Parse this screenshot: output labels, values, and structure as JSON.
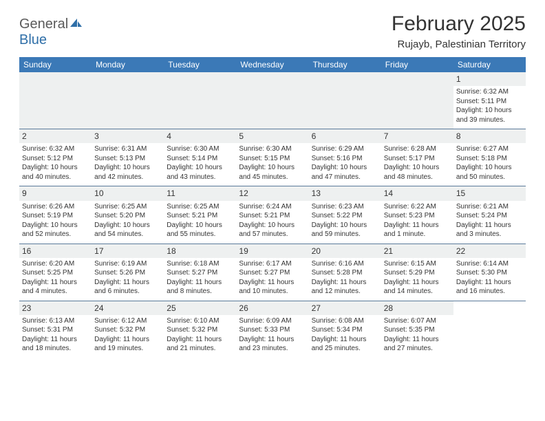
{
  "brand": {
    "text1": "General",
    "text2": "Blue"
  },
  "title": "February 2025",
  "location": "Rujayb, Palestinian Territory",
  "colors": {
    "header_bar": "#3b79b7",
    "band": "#eef0f0",
    "rule": "#5a7a9a",
    "text": "#333333",
    "logo_gray": "#5a5a5a",
    "logo_blue": "#2f6fa8"
  },
  "weekdays": [
    "Sunday",
    "Monday",
    "Tuesday",
    "Wednesday",
    "Thursday",
    "Friday",
    "Saturday"
  ],
  "weeks": [
    [
      {
        "blank": true
      },
      {
        "blank": true
      },
      {
        "blank": true
      },
      {
        "blank": true
      },
      {
        "blank": true
      },
      {
        "blank": true
      },
      {
        "day": "1",
        "sunrise": "Sunrise: 6:32 AM",
        "sunset": "Sunset: 5:11 PM",
        "daylight": "Daylight: 10 hours and 39 minutes."
      }
    ],
    [
      {
        "day": "2",
        "sunrise": "Sunrise: 6:32 AM",
        "sunset": "Sunset: 5:12 PM",
        "daylight": "Daylight: 10 hours and 40 minutes."
      },
      {
        "day": "3",
        "sunrise": "Sunrise: 6:31 AM",
        "sunset": "Sunset: 5:13 PM",
        "daylight": "Daylight: 10 hours and 42 minutes."
      },
      {
        "day": "4",
        "sunrise": "Sunrise: 6:30 AM",
        "sunset": "Sunset: 5:14 PM",
        "daylight": "Daylight: 10 hours and 43 minutes."
      },
      {
        "day": "5",
        "sunrise": "Sunrise: 6:30 AM",
        "sunset": "Sunset: 5:15 PM",
        "daylight": "Daylight: 10 hours and 45 minutes."
      },
      {
        "day": "6",
        "sunrise": "Sunrise: 6:29 AM",
        "sunset": "Sunset: 5:16 PM",
        "daylight": "Daylight: 10 hours and 47 minutes."
      },
      {
        "day": "7",
        "sunrise": "Sunrise: 6:28 AM",
        "sunset": "Sunset: 5:17 PM",
        "daylight": "Daylight: 10 hours and 48 minutes."
      },
      {
        "day": "8",
        "sunrise": "Sunrise: 6:27 AM",
        "sunset": "Sunset: 5:18 PM",
        "daylight": "Daylight: 10 hours and 50 minutes."
      }
    ],
    [
      {
        "day": "9",
        "sunrise": "Sunrise: 6:26 AM",
        "sunset": "Sunset: 5:19 PM",
        "daylight": "Daylight: 10 hours and 52 minutes."
      },
      {
        "day": "10",
        "sunrise": "Sunrise: 6:25 AM",
        "sunset": "Sunset: 5:20 PM",
        "daylight": "Daylight: 10 hours and 54 minutes."
      },
      {
        "day": "11",
        "sunrise": "Sunrise: 6:25 AM",
        "sunset": "Sunset: 5:21 PM",
        "daylight": "Daylight: 10 hours and 55 minutes."
      },
      {
        "day": "12",
        "sunrise": "Sunrise: 6:24 AM",
        "sunset": "Sunset: 5:21 PM",
        "daylight": "Daylight: 10 hours and 57 minutes."
      },
      {
        "day": "13",
        "sunrise": "Sunrise: 6:23 AM",
        "sunset": "Sunset: 5:22 PM",
        "daylight": "Daylight: 10 hours and 59 minutes."
      },
      {
        "day": "14",
        "sunrise": "Sunrise: 6:22 AM",
        "sunset": "Sunset: 5:23 PM",
        "daylight": "Daylight: 11 hours and 1 minute."
      },
      {
        "day": "15",
        "sunrise": "Sunrise: 6:21 AM",
        "sunset": "Sunset: 5:24 PM",
        "daylight": "Daylight: 11 hours and 3 minutes."
      }
    ],
    [
      {
        "day": "16",
        "sunrise": "Sunrise: 6:20 AM",
        "sunset": "Sunset: 5:25 PM",
        "daylight": "Daylight: 11 hours and 4 minutes."
      },
      {
        "day": "17",
        "sunrise": "Sunrise: 6:19 AM",
        "sunset": "Sunset: 5:26 PM",
        "daylight": "Daylight: 11 hours and 6 minutes."
      },
      {
        "day": "18",
        "sunrise": "Sunrise: 6:18 AM",
        "sunset": "Sunset: 5:27 PM",
        "daylight": "Daylight: 11 hours and 8 minutes."
      },
      {
        "day": "19",
        "sunrise": "Sunrise: 6:17 AM",
        "sunset": "Sunset: 5:27 PM",
        "daylight": "Daylight: 11 hours and 10 minutes."
      },
      {
        "day": "20",
        "sunrise": "Sunrise: 6:16 AM",
        "sunset": "Sunset: 5:28 PM",
        "daylight": "Daylight: 11 hours and 12 minutes."
      },
      {
        "day": "21",
        "sunrise": "Sunrise: 6:15 AM",
        "sunset": "Sunset: 5:29 PM",
        "daylight": "Daylight: 11 hours and 14 minutes."
      },
      {
        "day": "22",
        "sunrise": "Sunrise: 6:14 AM",
        "sunset": "Sunset: 5:30 PM",
        "daylight": "Daylight: 11 hours and 16 minutes."
      }
    ],
    [
      {
        "day": "23",
        "sunrise": "Sunrise: 6:13 AM",
        "sunset": "Sunset: 5:31 PM",
        "daylight": "Daylight: 11 hours and 18 minutes."
      },
      {
        "day": "24",
        "sunrise": "Sunrise: 6:12 AM",
        "sunset": "Sunset: 5:32 PM",
        "daylight": "Daylight: 11 hours and 19 minutes."
      },
      {
        "day": "25",
        "sunrise": "Sunrise: 6:10 AM",
        "sunset": "Sunset: 5:32 PM",
        "daylight": "Daylight: 11 hours and 21 minutes."
      },
      {
        "day": "26",
        "sunrise": "Sunrise: 6:09 AM",
        "sunset": "Sunset: 5:33 PM",
        "daylight": "Daylight: 11 hours and 23 minutes."
      },
      {
        "day": "27",
        "sunrise": "Sunrise: 6:08 AM",
        "sunset": "Sunset: 5:34 PM",
        "daylight": "Daylight: 11 hours and 25 minutes."
      },
      {
        "day": "28",
        "sunrise": "Sunrise: 6:07 AM",
        "sunset": "Sunset: 5:35 PM",
        "daylight": "Daylight: 11 hours and 27 minutes."
      },
      {
        "blank": true,
        "trailing": true
      }
    ]
  ]
}
